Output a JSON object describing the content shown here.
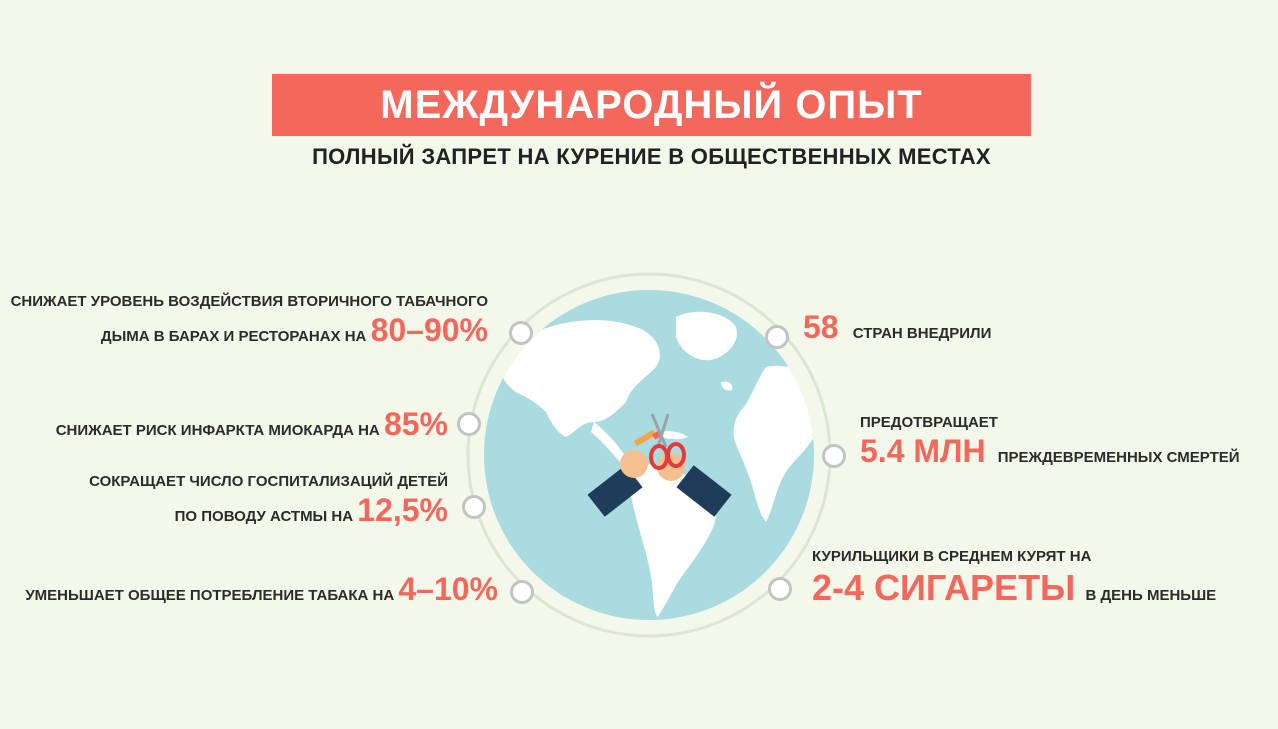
{
  "title": "МЕЖДУНАРОДНЫЙ ОПЫТ",
  "subtitle": "ПОЛНЫЙ ЗАПРЕТ НА КУРЕНИЕ В ОБЩЕСТВЕННЫХ МЕСТАХ",
  "colors": {
    "accent": "#f4675b",
    "background": "#f4f8ea",
    "ocean": "#a9dbe0",
    "land": "#ffffff"
  },
  "left_stats": [
    {
      "line1": "СНИЖАЕТ УРОВЕНЬ ВОЗДЕЙСТВИЯ ВТОРИЧНОГО ТАБАЧНОГО",
      "line2": "ДЫМА В БАРАХ И РЕСТОРАНАХ НА",
      "value": "80–90%"
    },
    {
      "line1": "",
      "line2": "СНИЖАЕТ РИСК ИНФАРКТА МИОКАРДА НА",
      "value": "85%"
    },
    {
      "line1": "СОКРАЩАЕТ ЧИСЛО ГОСПИТАЛИЗАЦИЙ ДЕТЕЙ",
      "line2": "ПО ПОВОДУ АСТМЫ НА",
      "value": "12,5%"
    },
    {
      "line1": "",
      "line2": "УМЕНЬШАЕТ ОБЩЕЕ ПОТРЕБЛЕНИЕ ТАБАКА НА",
      "value": "4–10%"
    }
  ],
  "right_stats": [
    {
      "value": "58",
      "text": "СТРАН ВНЕДРИЛИ"
    },
    {
      "line1": "ПРЕДОТВРАЩАЕТ",
      "value": "5.4 МЛН",
      "text": "ПРЕЖДЕВРЕМЕННЫХ СМЕРТЕЙ"
    },
    {
      "line1": "КУРИЛЬЩИКИ В СРЕДНЕМ  КУРЯТ НА",
      "value": "2-4 СИГАРЕТЫ",
      "text": "В ДЕНЬ МЕНЬШЕ"
    }
  ]
}
